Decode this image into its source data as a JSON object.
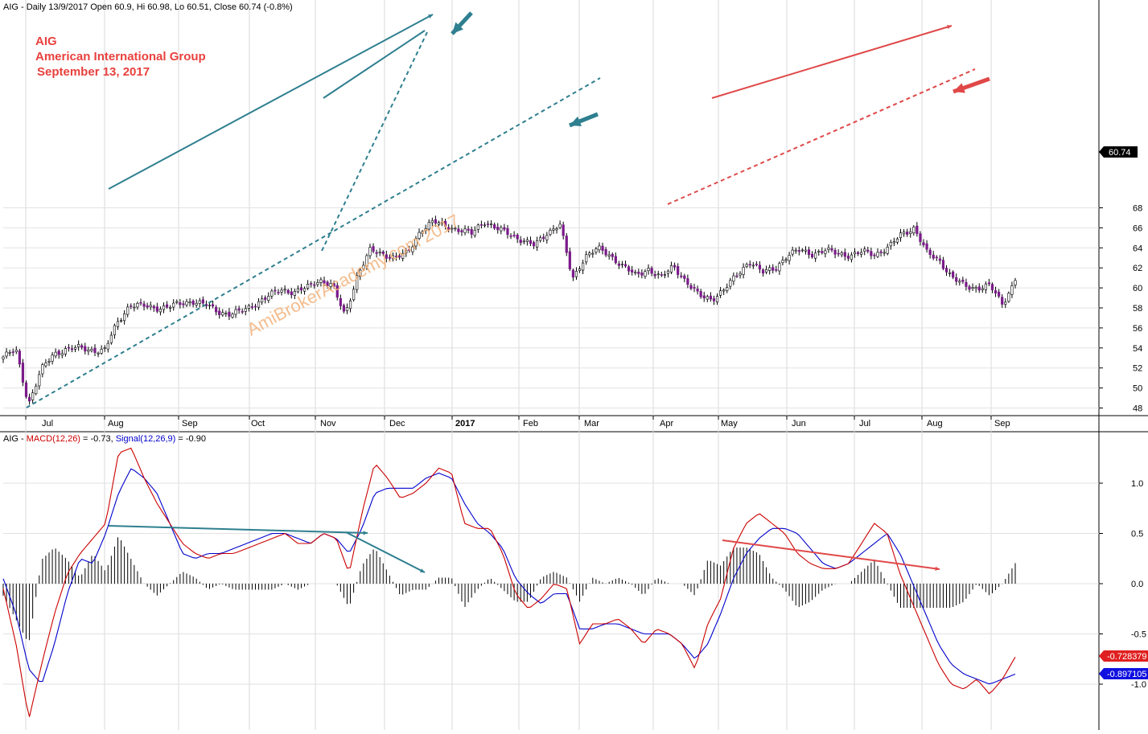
{
  "chart_data": [
    {
      "type": "candlestick",
      "header": {
        "symbol": "AIG",
        "period": "Daily",
        "date": "13/9/2017",
        "open_label": "Open",
        "open": 60.9,
        "high_label": "Hi",
        "high": 60.98,
        "low_label": "Lo",
        "low": 60.51,
        "close_label": "Close",
        "close": 60.74,
        "change": "(-0.8%)"
      },
      "annotations": [
        "AIG",
        "American International Group",
        "September 13, 2017"
      ],
      "watermark": "AmiBrokerAcademy.com  2017",
      "last_price_label": "60.74",
      "ylim": [
        47.2,
        69.2
      ],
      "y_ticks": [
        48,
        50,
        52,
        54,
        56,
        58,
        60,
        62,
        64,
        66,
        68
      ],
      "x_months": [
        "Jul",
        "Aug",
        "Sep",
        "Oct",
        "Nov",
        "Dec",
        "2017",
        "Feb",
        "Mar",
        "Apr",
        "May",
        "Jun",
        "Jul",
        "Aug",
        "Sep"
      ],
      "closes_weekly": [
        53.1,
        53.8,
        48.4,
        51.8,
        53.4,
        53.9,
        54.0,
        53.8,
        53.7,
        56.5,
        58.3,
        58.2,
        58.0,
        58.1,
        58.4,
        58.7,
        58.3,
        57.6,
        57.4,
        57.7,
        58.5,
        59.2,
        59.8,
        59.6,
        60.0,
        60.8,
        60.3,
        57.2,
        61.3,
        63.7,
        63.4,
        63.0,
        63.5,
        65.8,
        66.6,
        66.2,
        65.8,
        65.4,
        66.7,
        65.9,
        65.4,
        64.8,
        64.2,
        65.5,
        66.4,
        60.8,
        63.2,
        63.9,
        63.2,
        62.2,
        61.2,
        61.9,
        61.0,
        62.2,
        60.6,
        59.2,
        58.9,
        59.8,
        61.3,
        62.7,
        61.5,
        62.0,
        63.2,
        63.8,
        63.4,
        63.7,
        63.5,
        63.2,
        63.6,
        63.4,
        64.0,
        65.4,
        66.0,
        63.5,
        62.8,
        61.0,
        60.2,
        60.0,
        60.2,
        58.4,
        60.74
      ]
    },
    {
      "type": "macd",
      "title": "AIG - MACD(12,26) = -0.73, Signal(12,26,9) = -0.90",
      "title_parts": {
        "prefix": "AIG - ",
        "macd": "MACD(12,26)",
        "macd_val": " = -0.73, ",
        "signal": "Signal(12,26,9)",
        "signal_val": " = -0.90"
      },
      "ylim": [
        -1.45,
        1.6
      ],
      "y_ticks": [
        1.0,
        0.5,
        0.0,
        -0.5,
        -1.0
      ],
      "y_tick_labels": [
        "1.0",
        "0.5",
        "0.0",
        "-0.5",
        "-1.0"
      ],
      "macd_label": "-0.728379",
      "signal_label": "-0.897105",
      "series": [
        {
          "name": "MACD(12,26)",
          "color": "#cc0000",
          "values": [
            -0.05,
            -0.6,
            -1.35,
            -0.8,
            -0.3,
            0.1,
            0.3,
            0.45,
            0.6,
            1.3,
            1.35,
            1.05,
            0.8,
            0.6,
            0.4,
            0.3,
            0.25,
            0.3,
            0.3,
            0.35,
            0.4,
            0.45,
            0.5,
            0.4,
            0.4,
            0.5,
            0.45,
            0.1,
            0.7,
            1.2,
            1.05,
            0.85,
            0.9,
            1.0,
            1.15,
            1.1,
            0.6,
            0.55,
            0.55,
            0.3,
            -0.1,
            -0.25,
            -0.15,
            0.0,
            -0.05,
            -0.6,
            -0.4,
            -0.4,
            -0.35,
            -0.45,
            -0.6,
            -0.45,
            -0.5,
            -0.6,
            -0.85,
            -0.4,
            -0.15,
            0.35,
            0.6,
            0.7,
            0.6,
            0.5,
            0.3,
            0.2,
            0.15,
            0.15,
            0.2,
            0.4,
            0.6,
            0.5,
            0.1,
            -0.2,
            -0.5,
            -0.8,
            -1.0,
            -1.05,
            -0.95,
            -1.1,
            -0.95,
            -0.73
          ]
        },
        {
          "name": "Signal(12,26,9)",
          "color": "#0000cc",
          "values": [
            0.05,
            -0.3,
            -0.85,
            -1.0,
            -0.6,
            -0.1,
            0.25,
            0.2,
            0.5,
            0.9,
            1.15,
            1.05,
            0.9,
            0.6,
            0.3,
            0.25,
            0.3,
            0.3,
            0.35,
            0.4,
            0.45,
            0.5,
            0.5,
            0.45,
            0.4,
            0.5,
            0.45,
            0.3,
            0.55,
            0.9,
            0.95,
            0.95,
            0.95,
            1.05,
            1.1,
            1.05,
            0.8,
            0.6,
            0.5,
            0.35,
            0.05,
            -0.1,
            -0.2,
            -0.1,
            -0.1,
            -0.45,
            -0.45,
            -0.4,
            -0.4,
            -0.45,
            -0.5,
            -0.5,
            -0.5,
            -0.6,
            -0.75,
            -0.6,
            -0.3,
            0.05,
            0.3,
            0.45,
            0.55,
            0.55,
            0.5,
            0.35,
            0.2,
            0.15,
            0.2,
            0.3,
            0.4,
            0.5,
            0.3,
            0.0,
            -0.3,
            -0.6,
            -0.8,
            -0.9,
            -0.95,
            -1.0,
            -0.95,
            -0.9
          ]
        }
      ]
    }
  ]
}
